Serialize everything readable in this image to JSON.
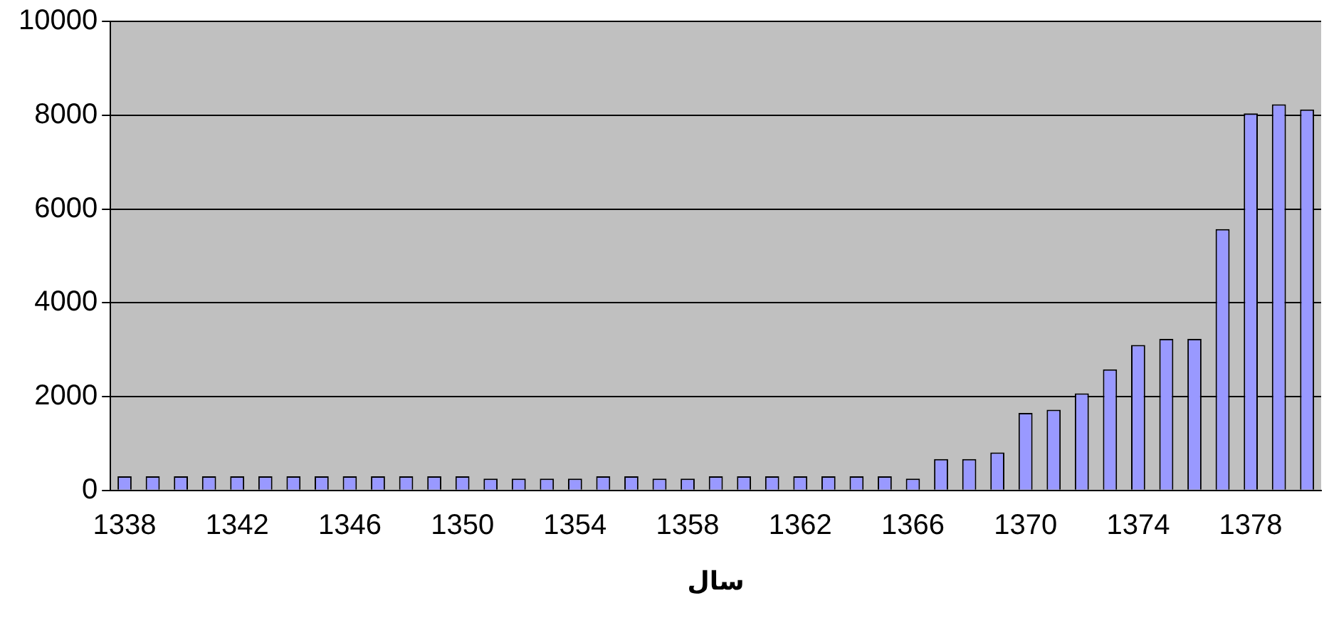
{
  "chart_data": {
    "type": "bar",
    "xlabel": "سال",
    "categories": [
      "1338",
      null,
      null,
      null,
      "1342",
      null,
      null,
      null,
      "1346",
      null,
      null,
      null,
      "1350",
      null,
      null,
      null,
      "1354",
      null,
      null,
      null,
      "1358",
      null,
      null,
      null,
      "1362",
      null,
      null,
      null,
      "1366",
      null,
      null,
      null,
      "1370",
      null,
      null,
      null,
      "1374",
      null,
      null,
      null,
      "1378",
      null,
      null
    ],
    "values": [
      300,
      300,
      300,
      300,
      300,
      300,
      300,
      300,
      300,
      300,
      300,
      300,
      300,
      250,
      250,
      250,
      250,
      300,
      300,
      250,
      250,
      300,
      300,
      300,
      300,
      300,
      300,
      300,
      250,
      670,
      670,
      810,
      1650,
      1720,
      2070,
      2580,
      3100,
      3230,
      3230,
      5570,
      8040,
      8230,
      8120
    ],
    "color": "#9999ff",
    "ylim": [
      0,
      10000
    ],
    "yticks": [
      0,
      2000,
      4000,
      6000,
      8000,
      10000
    ],
    "grid": "y"
  }
}
